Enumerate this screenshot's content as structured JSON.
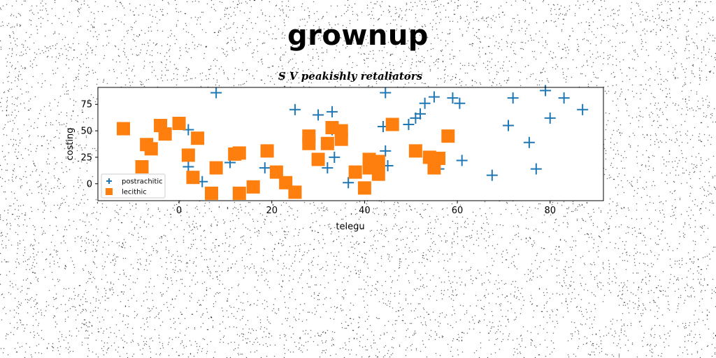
{
  "figure": {
    "suptitle": "grownup"
  },
  "chart_data": {
    "type": "scatter",
    "title": "S V peakishly retaliators",
    "xlabel": "telegu",
    "ylabel": "costing",
    "xlim": [
      -17.5,
      91.5
    ],
    "ylim": [
      -16,
      91
    ],
    "xticks": [
      0,
      20,
      40,
      60,
      80
    ],
    "yticks": [
      0,
      25,
      50,
      75
    ],
    "grid": false,
    "legend_position": "lower-left",
    "series": [
      {
        "name": "postrachitic",
        "marker": "plus",
        "color": "#1f77b4",
        "points": [
          [
            8,
            86
          ],
          [
            44.5,
            86
          ],
          [
            79,
            88
          ],
          [
            72,
            81
          ],
          [
            83,
            81
          ],
          [
            55,
            82
          ],
          [
            59,
            81
          ],
          [
            60.5,
            76
          ],
          [
            53,
            76
          ],
          [
            87,
            70
          ],
          [
            25,
            70
          ],
          [
            33,
            68
          ],
          [
            30,
            65
          ],
          [
            52,
            66
          ],
          [
            51,
            62
          ],
          [
            80,
            62
          ],
          [
            49.5,
            56
          ],
          [
            44,
            54
          ],
          [
            71,
            55
          ],
          [
            33,
            51
          ],
          [
            2,
            51
          ],
          [
            75.5,
            39
          ],
          [
            44.5,
            31
          ],
          [
            12.5,
            28
          ],
          [
            33.5,
            25
          ],
          [
            61,
            22
          ],
          [
            11,
            20
          ],
          [
            45,
            17
          ],
          [
            18.5,
            15
          ],
          [
            32,
            15
          ],
          [
            2,
            16
          ],
          [
            77,
            14
          ],
          [
            56,
            14
          ],
          [
            67.5,
            8
          ],
          [
            5,
            2
          ],
          [
            36.5,
            1
          ]
        ]
      },
      {
        "name": "lecithic",
        "marker": "square",
        "color": "#ff7f0e",
        "points": [
          [
            -12,
            52
          ],
          [
            -4,
            55
          ],
          [
            0,
            57
          ],
          [
            -3,
            47
          ],
          [
            4,
            43
          ],
          [
            -7,
            37
          ],
          [
            -6,
            33
          ],
          [
            2,
            27
          ],
          [
            -8,
            16
          ],
          [
            3,
            6
          ],
          [
            8,
            15
          ],
          [
            13,
            29
          ],
          [
            12,
            28
          ],
          [
            19,
            31
          ],
          [
            21,
            11
          ],
          [
            23,
            1
          ],
          [
            25,
            -8
          ],
          [
            16,
            -3
          ],
          [
            13,
            -9
          ],
          [
            7,
            -9
          ],
          [
            28,
            45
          ],
          [
            28,
            38
          ],
          [
            33,
            53
          ],
          [
            35,
            50
          ],
          [
            35,
            42
          ],
          [
            32,
            38
          ],
          [
            30,
            23
          ],
          [
            38,
            11
          ],
          [
            40,
            -4
          ],
          [
            41,
            23
          ],
          [
            41,
            15
          ],
          [
            43,
            21
          ],
          [
            43,
            9
          ],
          [
            46,
            56
          ],
          [
            51,
            31
          ],
          [
            54,
            25
          ],
          [
            56,
            24
          ],
          [
            55,
            15
          ],
          [
            58,
            45
          ]
        ]
      }
    ]
  }
}
